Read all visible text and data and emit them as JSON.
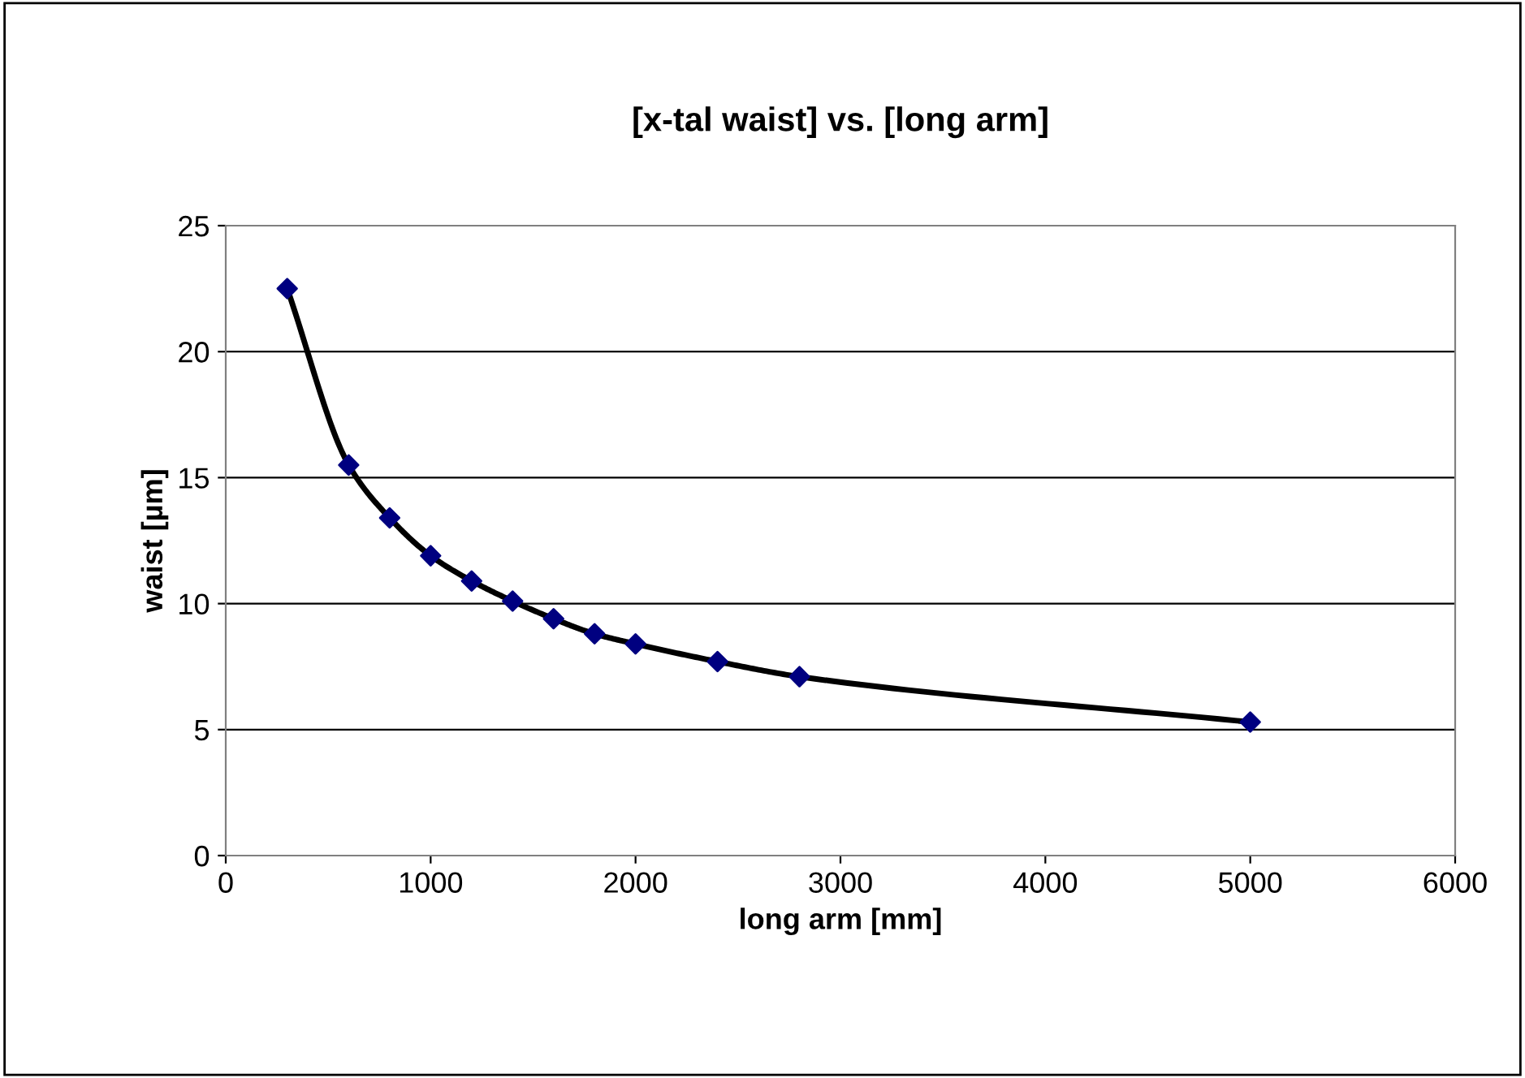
{
  "chart_data": {
    "type": "scatter",
    "title": "[x-tal waist] vs. [long arm]",
    "xlabel": "long arm [mm]",
    "ylabel": "waist [µm]",
    "x": [
      300,
      600,
      800,
      1000,
      1200,
      1400,
      1600,
      1800,
      2000,
      2400,
      2800,
      5000
    ],
    "series": [
      {
        "type": "line",
        "color": "#000000",
        "marker": "none",
        "values": [
          22.5,
          15.5,
          13.4,
          11.9,
          10.9,
          10.1,
          9.4,
          8.8,
          8.4,
          7.7,
          7.1,
          5.3
        ]
      },
      {
        "color": "#000080",
        "marker": "diamond",
        "values": [
          22.5,
          15.5,
          13.4,
          11.9,
          10.9,
          10.1,
          9.4,
          8.8,
          8.4,
          7.7,
          7.1,
          5.3
        ]
      }
    ],
    "xlim": [
      0,
      6000
    ],
    "xticks": [
      0,
      1000,
      2000,
      3000,
      4000,
      5000,
      6000
    ],
    "ylim": [
      0,
      25
    ],
    "yticks": [
      0,
      5,
      10,
      15,
      20,
      25
    ],
    "grid": "y",
    "legend": false
  }
}
